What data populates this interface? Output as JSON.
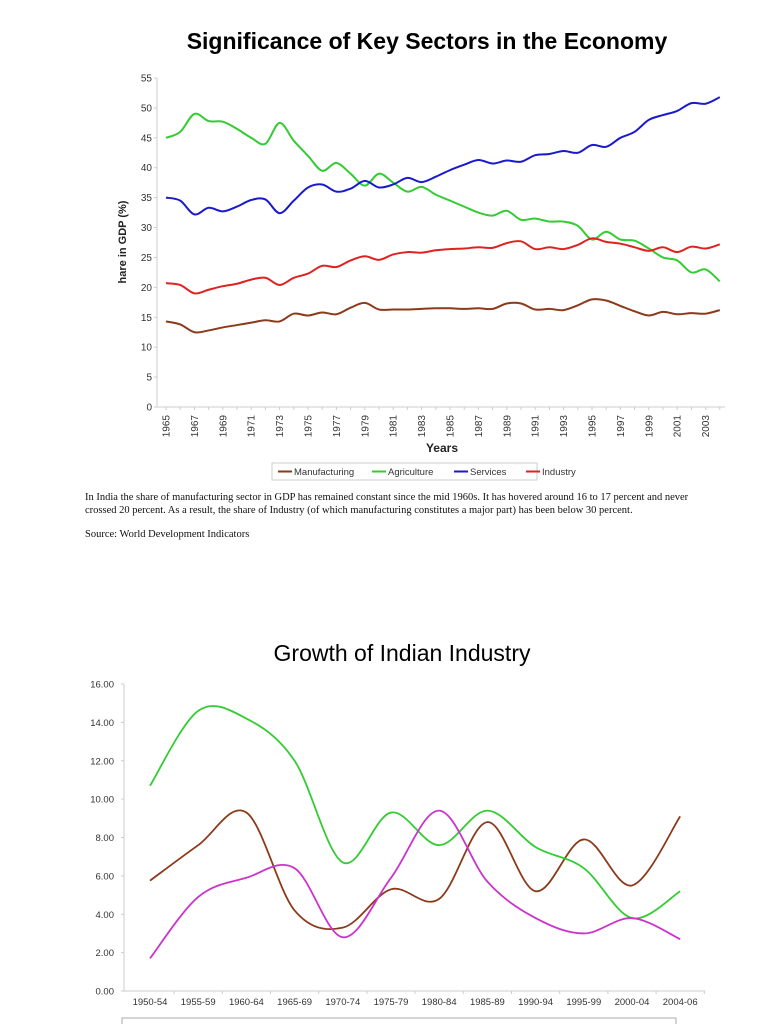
{
  "chart_data": [
    {
      "type": "line",
      "title": "Significance of Key Sectors in the Economy",
      "xlabel": "Years",
      "ylabel": "hare in GDP (%)",
      "ylim": [
        0,
        55
      ],
      "yticks": [
        "0",
        "5",
        "10",
        "15",
        "20",
        "25",
        "30",
        "35",
        "40",
        "45",
        "50",
        "55"
      ],
      "xtick_labels": [
        "1965",
        "1967",
        "1969",
        "1971",
        "1973",
        "1975",
        "1977",
        "1979",
        "1981",
        "1983",
        "1985",
        "1987",
        "1989",
        "1991",
        "1993",
        "1995",
        "1997",
        "1999",
        "2001",
        "2003"
      ],
      "x": [
        1965,
        1966,
        1967,
        1968,
        1969,
        1970,
        1971,
        1972,
        1973,
        1974,
        1975,
        1976,
        1977,
        1978,
        1979,
        1980,
        1981,
        1982,
        1983,
        1984,
        1985,
        1986,
        1987,
        1988,
        1989,
        1990,
        1991,
        1992,
        1993,
        1994,
        1995,
        1996,
        1997,
        1998,
        1999,
        2000,
        2001,
        2002,
        2003,
        2004
      ],
      "grid": false,
      "legend": "bottom",
      "series": [
        {
          "name": "Manufacturing",
          "color": "#8b3a1a",
          "values": [
            14.3,
            13.8,
            12.5,
            12.8,
            13.3,
            13.7,
            14.1,
            14.5,
            14.3,
            15.6,
            15.3,
            15.8,
            15.5,
            16.6,
            17.4,
            16.3,
            16.3,
            16.3,
            16.4,
            16.5,
            16.5,
            16.4,
            16.5,
            16.4,
            17.3,
            17.3,
            16.3,
            16.4,
            16.2,
            17.0,
            18.0,
            17.8,
            16.9,
            16.0,
            15.3,
            15.9,
            15.5,
            15.7,
            15.6,
            16.2
          ]
        },
        {
          "name": "Agriculture",
          "color": "#33cc33",
          "values": [
            45,
            46,
            49,
            47.8,
            47.7,
            46.5,
            45,
            44,
            47.5,
            44.5,
            42,
            39.5,
            40.8,
            39,
            37,
            39,
            37.5,
            36,
            36.8,
            35.5,
            34.5,
            33.5,
            32.5,
            32,
            32.8,
            31.3,
            31.5,
            31,
            31,
            30.3,
            28,
            29.3,
            28,
            27.8,
            26.5,
            25,
            24.5,
            22.5,
            23,
            21
          ]
        },
        {
          "name": "Services",
          "color": "#1a1acc",
          "values": [
            35,
            34.5,
            32.2,
            33.3,
            32.7,
            33.5,
            34.6,
            34.7,
            32.4,
            34.5,
            36.7,
            37.2,
            36,
            36.5,
            37.8,
            36.7,
            37.2,
            38.3,
            37.6,
            38.5,
            39.6,
            40.5,
            41.3,
            40.7,
            41.2,
            41,
            42.1,
            42.3,
            42.8,
            42.5,
            43.8,
            43.5,
            45,
            46,
            48,
            48.8,
            49.5,
            50.8,
            50.7,
            51.8
          ]
        },
        {
          "name": "Industry",
          "color": "#dd2222",
          "values": [
            20.7,
            20.4,
            19,
            19.6,
            20.2,
            20.6,
            21.3,
            21.6,
            20.4,
            21.6,
            22.3,
            23.6,
            23.4,
            24.5,
            25.2,
            24.6,
            25.5,
            25.9,
            25.8,
            26.2,
            26.4,
            26.5,
            26.7,
            26.6,
            27.4,
            27.7,
            26.4,
            26.7,
            26.4,
            27.1,
            28.2,
            27.6,
            27.3,
            26.7,
            26.1,
            26.7,
            25.9,
            26.8,
            26.5,
            27.2
          ]
        }
      ]
    },
    {
      "type": "line",
      "title": "Growth of Indian Industry",
      "ylim": [
        0,
        16
      ],
      "yticks": [
        "0.00",
        "2.00",
        "4.00",
        "6.00",
        "8.00",
        "10.00",
        "12.00",
        "14.00",
        "16.00"
      ],
      "categories": [
        "1950-54",
        "1955-59",
        "1960-64",
        "1965-69",
        "1970-74",
        "1975-79",
        "1980-84",
        "1985-89",
        "1990-94",
        "1995-99",
        "2000-04",
        "2004-06"
      ],
      "grid": false,
      "legend": "bottom",
      "series": [
        {
          "color": "#8b3a1a",
          "values": [
            5.75,
            7.6,
            9.3,
            4.2,
            3.3,
            5.3,
            4.8,
            8.8,
            5.2,
            7.9,
            5.5,
            9.1
          ]
        },
        {
          "color": "#33cc33",
          "values": [
            10.7,
            14.6,
            14.2,
            12.0,
            6.7,
            9.3,
            7.6,
            9.4,
            7.5,
            6.4,
            3.8,
            5.2
          ]
        },
        {
          "color": "#cc33cc",
          "values": [
            1.7,
            4.9,
            5.9,
            6.4,
            2.8,
            5.9,
            9.4,
            5.7,
            3.8,
            3.0,
            3.8,
            2.7
          ]
        }
      ]
    }
  ],
  "text": {
    "paragraph": "In India the share of manufacturing sector in GDP has remained constant since the mid 1960s. It has hovered around 16 to 17 percent and never crossed 20 percent. As a result, the share of Industry (of which manufacturing constitutes a major part) has been below 30 percent.",
    "source": "Source: World Development Indicators"
  }
}
